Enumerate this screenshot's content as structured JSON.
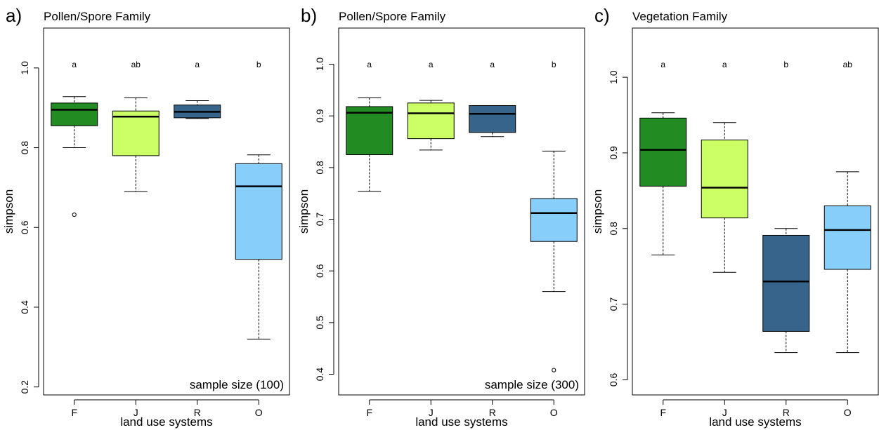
{
  "chart_data": [
    {
      "type": "box",
      "panel_letter": "a)",
      "title": "Pollen/Spore Family",
      "xlabel": "land use systems",
      "ylabel": "simpson",
      "ylim": [
        0.18,
        1.1
      ],
      "yticks": [
        "0.2",
        "0.4",
        "0.6",
        "0.8",
        "1.0"
      ],
      "annotation": "sample size (100)",
      "boxes": [
        {
          "category": "F",
          "color": "#228B22",
          "group": "a",
          "min": 0.8,
          "q1": 0.855,
          "median": 0.895,
          "q3": 0.912,
          "max": 0.928,
          "outliers": [
            0.632
          ]
        },
        {
          "category": "J",
          "color": "#CCFF66",
          "group": "ab",
          "min": 0.69,
          "q1": 0.78,
          "median": 0.878,
          "q3": 0.892,
          "max": 0.925,
          "outliers": []
        },
        {
          "category": "R",
          "color": "#36648B",
          "group": "a",
          "min": 0.873,
          "q1": 0.875,
          "median": 0.89,
          "q3": 0.907,
          "max": 0.918,
          "outliers": []
        },
        {
          "category": "O",
          "color": "#87CEFA",
          "group": "b",
          "min": 0.32,
          "q1": 0.52,
          "median": 0.703,
          "q3": 0.76,
          "max": 0.782,
          "outliers": []
        }
      ]
    },
    {
      "type": "box",
      "panel_letter": "b)",
      "title": "Pollen/Spore Family",
      "xlabel": "land use systems",
      "ylabel": "simpson",
      "ylim": [
        0.36,
        1.07
      ],
      "yticks": [
        "0.4",
        "0.5",
        "0.6",
        "0.7",
        "0.8",
        "0.9",
        "1.0"
      ],
      "annotation": "sample size (300)",
      "boxes": [
        {
          "category": "F",
          "color": "#228B22",
          "group": "a",
          "min": 0.754,
          "q1": 0.825,
          "median": 0.906,
          "q3": 0.918,
          "max": 0.935,
          "outliers": []
        },
        {
          "category": "J",
          "color": "#CCFF66",
          "group": "a",
          "min": 0.834,
          "q1": 0.856,
          "median": 0.905,
          "q3": 0.925,
          "max": 0.93,
          "outliers": []
        },
        {
          "category": "R",
          "color": "#36648B",
          "group": "a",
          "min": 0.86,
          "q1": 0.868,
          "median": 0.904,
          "q3": 0.92,
          "max": 0.92,
          "outliers": []
        },
        {
          "category": "O",
          "color": "#87CEFA",
          "group": "b",
          "min": 0.56,
          "q1": 0.657,
          "median": 0.712,
          "q3": 0.74,
          "max": 0.832,
          "outliers": [
            0.408
          ]
        }
      ]
    },
    {
      "type": "box",
      "panel_letter": "c)",
      "title": "Vegetation Family",
      "xlabel": "land use systems",
      "ylabel": "simpson",
      "ylim": [
        0.58,
        1.065
      ],
      "yticks": [
        "0.6",
        "0.7",
        "0.8",
        "0.9",
        "1.0"
      ],
      "annotation": "",
      "boxes": [
        {
          "category": "F",
          "color": "#228B22",
          "group": "a",
          "min": 0.765,
          "q1": 0.856,
          "median": 0.904,
          "q3": 0.946,
          "max": 0.953,
          "outliers": []
        },
        {
          "category": "J",
          "color": "#CCFF66",
          "group": "a",
          "min": 0.742,
          "q1": 0.814,
          "median": 0.854,
          "q3": 0.917,
          "max": 0.94,
          "outliers": []
        },
        {
          "category": "R",
          "color": "#36648B",
          "group": "b",
          "min": 0.636,
          "q1": 0.664,
          "median": 0.73,
          "q3": 0.791,
          "max": 0.8,
          "outliers": []
        },
        {
          "category": "O",
          "color": "#87CEFA",
          "group": "ab",
          "min": 0.636,
          "q1": 0.746,
          "median": 0.798,
          "q3": 0.83,
          "max": 0.875,
          "outliers": []
        }
      ]
    }
  ]
}
